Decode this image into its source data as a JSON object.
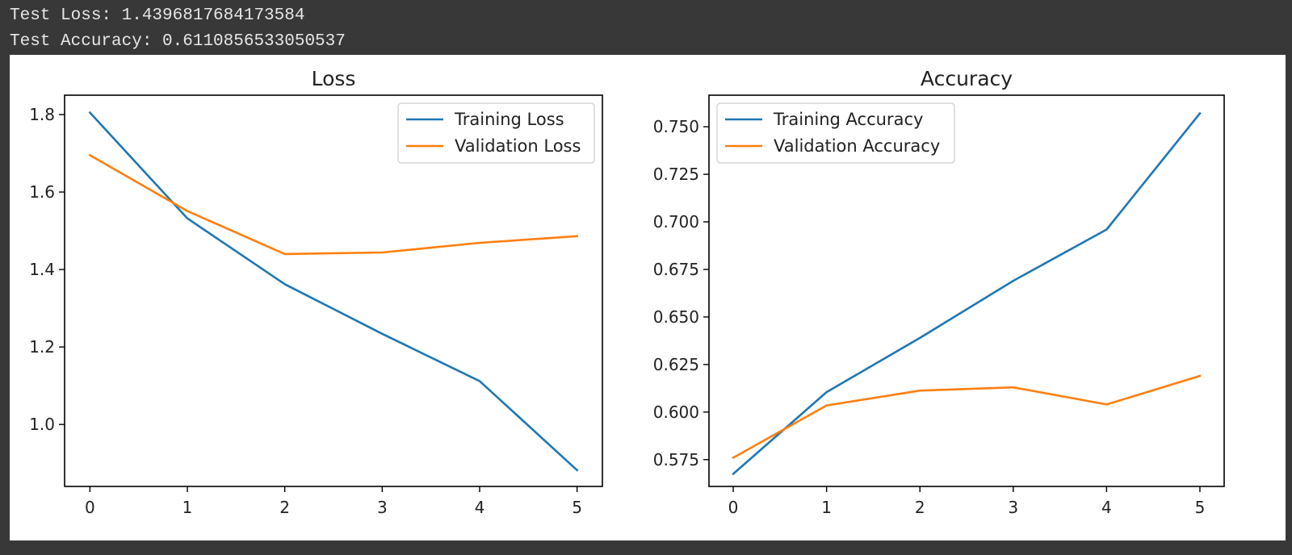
{
  "console": {
    "test_loss_line": "Test Loss: 1.4396817684173584",
    "test_accuracy_line": "Test Accuracy: 0.6110856533050537"
  },
  "colors": {
    "training": "#1f77b4",
    "validation": "#ff7f0e"
  },
  "chart_data": [
    {
      "type": "line",
      "title": "Loss",
      "xlabel": "",
      "ylabel": "",
      "x": [
        0,
        1,
        2,
        3,
        4,
        5
      ],
      "xlim": [
        -0.26,
        5.26
      ],
      "ylim": [
        0.84,
        1.85
      ],
      "xticks": [
        0,
        1,
        2,
        3,
        4,
        5
      ],
      "yticks": [
        1.0,
        1.2,
        1.4,
        1.6,
        1.8
      ],
      "ytick_labels": [
        "1.0",
        "1.2",
        "1.4",
        "1.6",
        "1.8"
      ],
      "legend": "top-right",
      "grid": false,
      "series": [
        {
          "name": "Training Loss",
          "values": [
            1.805,
            1.532,
            1.362,
            1.234,
            1.112,
            0.882
          ]
        },
        {
          "name": "Validation Loss",
          "values": [
            1.695,
            1.551,
            1.44,
            1.444,
            1.469,
            1.486
          ]
        }
      ]
    },
    {
      "type": "line",
      "title": "Accuracy",
      "xlabel": "",
      "ylabel": "",
      "x": [
        0,
        1,
        2,
        3,
        4,
        5
      ],
      "xlim": [
        -0.26,
        5.26
      ],
      "ylim": [
        0.5609,
        0.7666
      ],
      "xticks": [
        0,
        1,
        2,
        3,
        4,
        5
      ],
      "yticks": [
        0.575,
        0.6,
        0.625,
        0.65,
        0.675,
        0.7,
        0.725,
        0.75
      ],
      "ytick_labels": [
        "0.575",
        "0.600",
        "0.625",
        "0.650",
        "0.675",
        "0.700",
        "0.725",
        "0.750"
      ],
      "legend": "top-left",
      "grid": false,
      "series": [
        {
          "name": "Training Accuracy",
          "values": [
            0.5675,
            0.6105,
            0.639,
            0.669,
            0.696,
            0.757
          ]
        },
        {
          "name": "Validation Accuracy",
          "values": [
            0.576,
            0.6035,
            0.6113,
            0.613,
            0.604,
            0.619
          ]
        }
      ]
    }
  ]
}
